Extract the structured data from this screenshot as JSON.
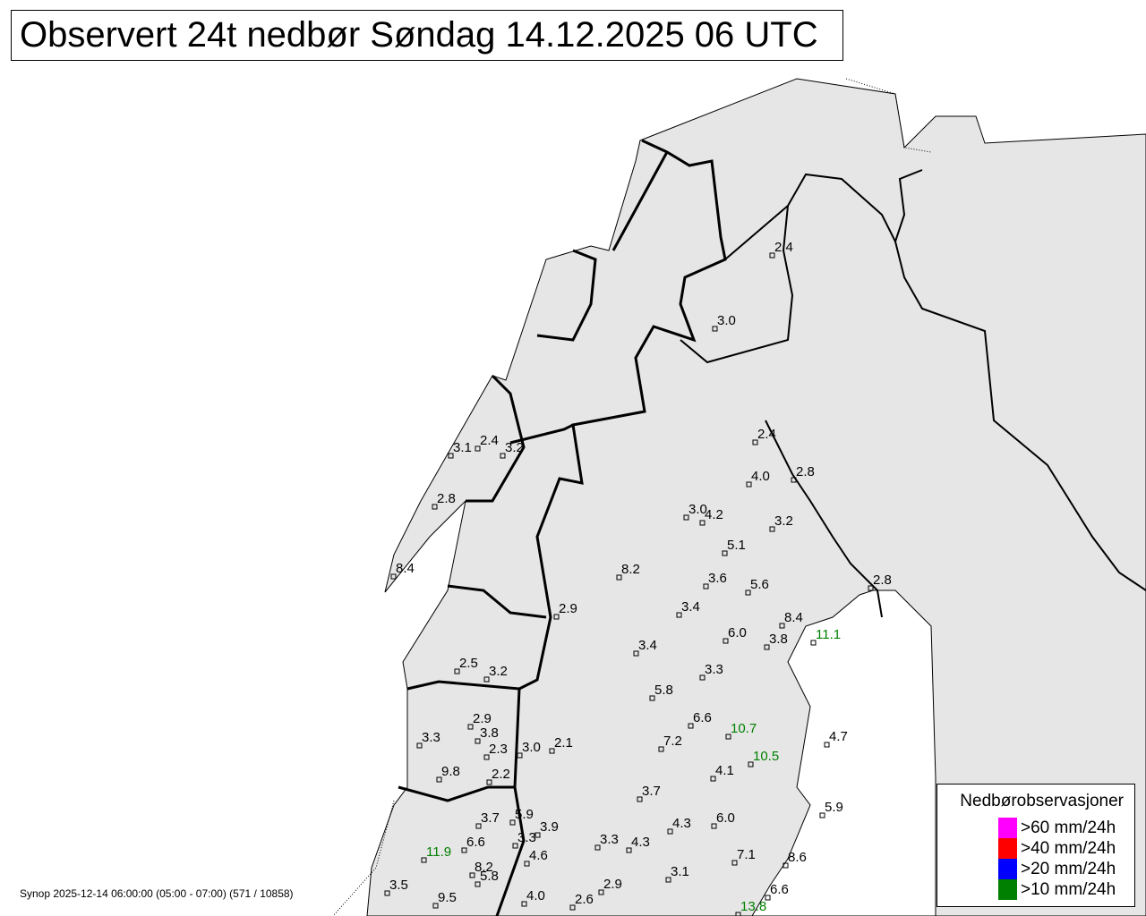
{
  "title": "Observert 24t nedbør Søndag 14.12.2025 06 UTC",
  "footer": "Synop 2025-12-14 06:00:00 (05:00 - 07:00) (571 / 10858)",
  "colors": {
    "land": "#e6e6e6",
    "sea": "#ffffff",
    "normal_value": "#000000",
    "gt10": "#008000",
    "gt20": "#0000ff",
    "gt40": "#ff0000",
    "gt60": "#ff00ff"
  },
  "legend": {
    "title": "Nedbørobservasjoner",
    "items": [
      {
        "label": ">60 mm/24h",
        "color": "#ff00ff"
      },
      {
        "label": ">40 mm/24h",
        "color": "#ff0000"
      },
      {
        "label": ">20 mm/24h",
        "color": "#0000ff"
      },
      {
        "label": ">10 mm/24h",
        "color": "#008000"
      }
    ]
  },
  "stations": [
    {
      "value": "2.4"
    },
    {
      "value": "3.0"
    },
    {
      "value": "2.4"
    },
    {
      "value": "4.0"
    },
    {
      "value": "2.8"
    },
    {
      "value": "3.0"
    },
    {
      "value": "4.2"
    },
    {
      "value": "3.2"
    },
    {
      "value": "5.1"
    },
    {
      "value": "8.2"
    },
    {
      "value": "3.6"
    },
    {
      "value": "5.6"
    },
    {
      "value": "2.8"
    },
    {
      "value": "2.9"
    },
    {
      "value": "3.4"
    },
    {
      "value": "8.4"
    },
    {
      "value": "11.1"
    },
    {
      "value": "6.0"
    },
    {
      "value": "3.8"
    },
    {
      "value": "3.4"
    },
    {
      "value": "3.3"
    },
    {
      "value": "5.8"
    },
    {
      "value": "2.5"
    },
    {
      "value": "3.2"
    },
    {
      "value": "2.9"
    },
    {
      "value": "3.8"
    },
    {
      "value": "3.3"
    },
    {
      "value": "2.3"
    },
    {
      "value": "3.0"
    },
    {
      "value": "2.1"
    },
    {
      "value": "9.8"
    },
    {
      "value": "2.2"
    },
    {
      "value": "6.6"
    },
    {
      "value": "10.7"
    },
    {
      "value": "7.2"
    },
    {
      "value": "10.5"
    },
    {
      "value": "4.1"
    },
    {
      "value": "4.7"
    },
    {
      "value": "3.7"
    },
    {
      "value": "3.7"
    },
    {
      "value": "5.9"
    },
    {
      "value": "3.9"
    },
    {
      "value": "3.3"
    },
    {
      "value": "11.9"
    },
    {
      "value": "6.6"
    },
    {
      "value": "4.6"
    },
    {
      "value": "4.3"
    },
    {
      "value": "6.0"
    },
    {
      "value": "3.3"
    },
    {
      "value": "4.3"
    },
    {
      "value": "5.9"
    },
    {
      "value": "7.1"
    },
    {
      "value": "8.6"
    },
    {
      "value": "3.1"
    },
    {
      "value": "8.2"
    },
    {
      "value": "5.8"
    },
    {
      "value": "2.9"
    },
    {
      "value": "6.6"
    },
    {
      "value": "3.5"
    },
    {
      "value": "9.5"
    },
    {
      "value": "4.0"
    },
    {
      "value": "2.6"
    },
    {
      "value": "13.8"
    },
    {
      "value": "3.1"
    },
    {
      "value": "2.4"
    },
    {
      "value": "3.2"
    },
    {
      "value": "2.8"
    },
    {
      "value": "8.4"
    }
  ]
}
